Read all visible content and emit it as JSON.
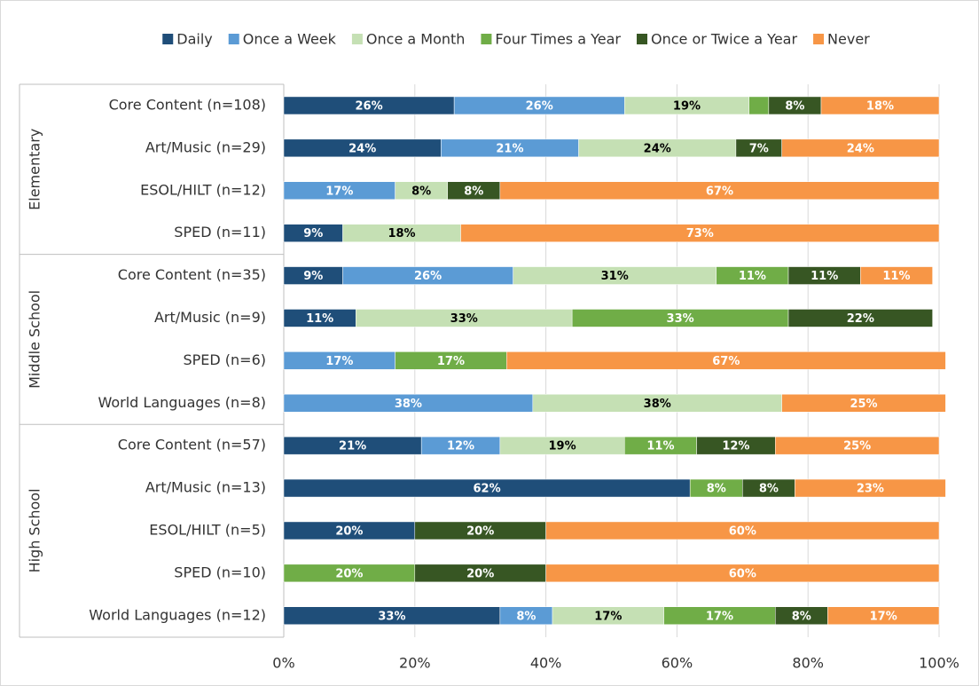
{
  "chart_data": {
    "type": "bar",
    "orientation": "horizontal",
    "stacked": true,
    "groups": [
      {
        "label": "Elementary",
        "categories": [
          "Core Content (n=108)",
          "Art/Music (n=29)",
          "ESOL/HILT (n=12)",
          "SPED (n=11)"
        ]
      },
      {
        "label": "Middle School",
        "categories": [
          "Core Content (n=35)",
          "Art/Music (n=9)",
          "SPED (n=6)",
          "World Languages (n=8)"
        ]
      },
      {
        "label": "High School",
        "categories": [
          "Core Content (n=57)",
          "Art/Music (n=13)",
          "ESOL/HILT (n=5)",
          "SPED (n=10)",
          "World Languages (n=12)"
        ]
      }
    ],
    "series": [
      {
        "name": "Daily",
        "color": "#1f4e79",
        "label_color": "#ffffff",
        "values": [
          26,
          24,
          0,
          9,
          9,
          11,
          0,
          0,
          21,
          62,
          20,
          0,
          33
        ],
        "value_labels": [
          "26%",
          "24%",
          null,
          "9%",
          "9%",
          "11%",
          null,
          null,
          "21%",
          "62%",
          "20%",
          null,
          "33%"
        ]
      },
      {
        "name": "Once a Week",
        "color": "#5b9bd5",
        "label_color": "#ffffff",
        "values": [
          26,
          21,
          17,
          0,
          26,
          0,
          17,
          38,
          12,
          0,
          0,
          0,
          8
        ],
        "value_labels": [
          "26%",
          "21%",
          "17%",
          null,
          "26%",
          null,
          "17%",
          "38%",
          "12%",
          null,
          null,
          null,
          "8%"
        ]
      },
      {
        "name": "Once a Month",
        "color": "#c5e0b4",
        "label_color": "#000000",
        "values": [
          19,
          24,
          8,
          18,
          31,
          33,
          0,
          38,
          19,
          0,
          0,
          0,
          17
        ],
        "value_labels": [
          "19%",
          "24%",
          "8%",
          "18%",
          "31%",
          "33%",
          null,
          "38%",
          "19%",
          null,
          null,
          null,
          "17%"
        ]
      },
      {
        "name": "Four Times a Year",
        "color": "#70ad47",
        "label_color": "#ffffff",
        "values": [
          3,
          0,
          0,
          0,
          11,
          33,
          17,
          0,
          11,
          8,
          0,
          20,
          17
        ],
        "value_labels": [
          null,
          null,
          null,
          null,
          "11%",
          "33%",
          "17%",
          null,
          "11%",
          "8%",
          null,
          "20%",
          "17%"
        ]
      },
      {
        "name": "Once or Twice a Year",
        "color": "#375623",
        "label_color": "#ffffff",
        "values": [
          8,
          7,
          8,
          0,
          11,
          22,
          0,
          0,
          12,
          8,
          20,
          20,
          8
        ],
        "value_labels": [
          "8%",
          "7%",
          "8%",
          null,
          "11%",
          "22%",
          null,
          null,
          "12%",
          "8%",
          "20%",
          "20%",
          "8%"
        ]
      },
      {
        "name": "Never",
        "color": "#f79646",
        "label_color": "#ffffff",
        "values": [
          18,
          24,
          67,
          73,
          11,
          0,
          67,
          25,
          25,
          23,
          60,
          60,
          17
        ],
        "value_labels": [
          "18%",
          "24%",
          "67%",
          "73%",
          "11%",
          null,
          "67%",
          "25%",
          "25%",
          "23%",
          "60%",
          "60%",
          "17%"
        ]
      }
    ],
    "xlim": [
      0,
      100
    ],
    "xticks": [
      {
        "value": 0,
        "label": "0%"
      },
      {
        "value": 20,
        "label": "20%"
      },
      {
        "value": 40,
        "label": "40%"
      },
      {
        "value": 60,
        "label": "60%"
      },
      {
        "value": 80,
        "label": "80%"
      },
      {
        "value": 100,
        "label": "100%"
      }
    ],
    "grid": true,
    "legend": "top"
  }
}
